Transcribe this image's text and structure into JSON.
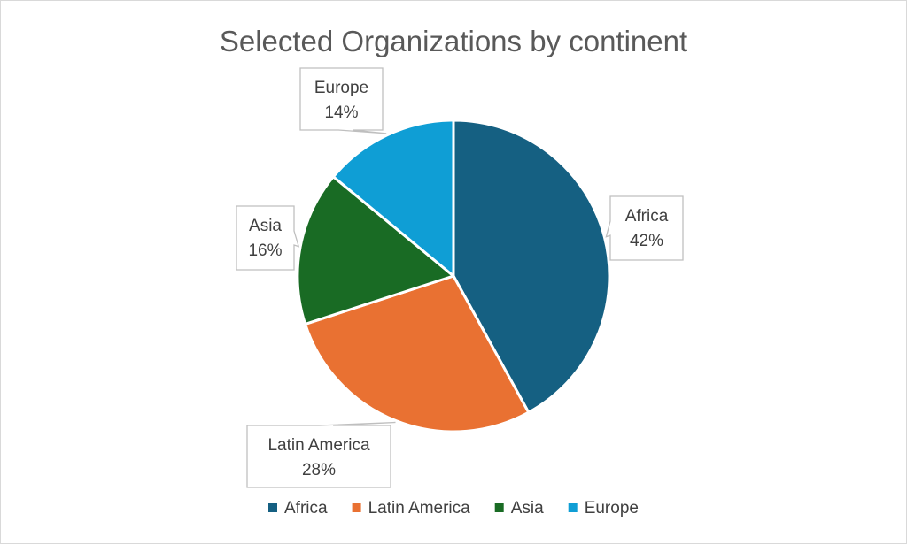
{
  "chart_data": {
    "type": "pie",
    "title": "Selected Organizations by continent",
    "categories": [
      "Africa",
      "Latin America",
      "Asia",
      "Europe"
    ],
    "values": [
      42,
      28,
      16,
      14
    ],
    "value_unit": "%",
    "data_labels": [
      "42%",
      "28%",
      "16%",
      "14%"
    ],
    "colors": [
      "#156082",
      "#E97132",
      "#196B24",
      "#0F9ED5"
    ],
    "legend": {
      "position": "bottom",
      "items": [
        "Africa",
        "Latin America",
        "Asia",
        "Europe"
      ]
    }
  }
}
